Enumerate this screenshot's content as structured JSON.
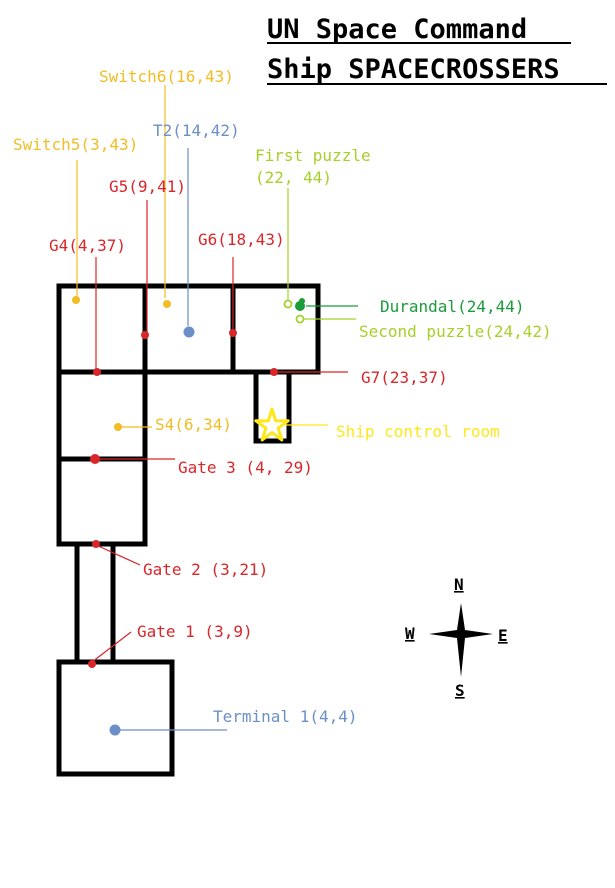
{
  "title": {
    "line1": "UN Space Command",
    "line2": "Ship SPACECROSSERS"
  },
  "colors": {
    "wall": "#000000",
    "gate": "#d9262a",
    "switch": "#f2bd23",
    "terminal": "#6b8fc7",
    "puzzle": "#a6d02a",
    "durandal": "#1a9c3a",
    "star": "#ffe81a"
  },
  "labels": {
    "switch6": "Switch6(16,43)",
    "t2": "T2(14,42)",
    "switch5": "Switch5(3,43)",
    "first_puzzle_1": "First puzzle",
    "first_puzzle_2": "(22, 44)",
    "g5": "G5(9,41)",
    "g4": "G4(4,37)",
    "g6": "G6(18,43)",
    "durandal": "Durandal(24,44)",
    "second_puzzle": "Second puzzle(24,42)",
    "g7": "G7(23,37)",
    "s4": "S4(6,34)",
    "ship_control_room": "Ship control room",
    "gate3": "Gate 3 (4, 29)",
    "gate2": "Gate 2 (3,21)",
    "gate1": "Gate 1 (3,9)",
    "terminal1": "Terminal 1(4,4)"
  },
  "compass": {
    "n": "N",
    "s": "S",
    "e": "E",
    "w": "W"
  }
}
